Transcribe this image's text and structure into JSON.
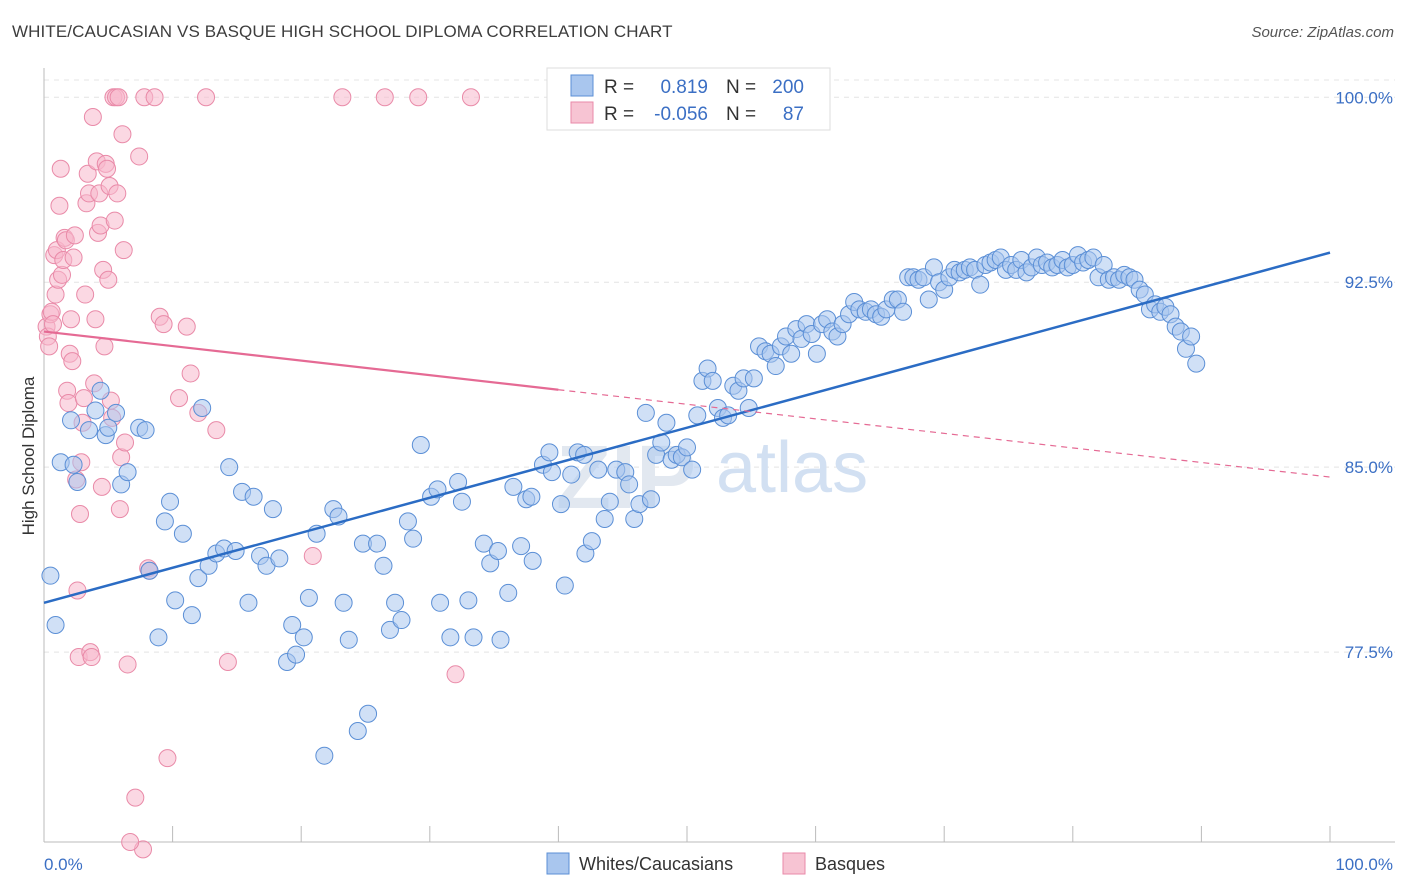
{
  "header": {
    "title": "WHITE/CAUCASIAN VS BASQUE HIGH SCHOOL DIPLOMA CORRELATION CHART",
    "source": "Source: ZipAtlas.com"
  },
  "watermark": {
    "part1": "ZIP",
    "part2": "atlas"
  },
  "colors": {
    "white_fill": "#a9c6ee",
    "white_stroke": "#5b8fd6",
    "white_line": "#2b6cc4",
    "basque_fill": "#f7b8cc",
    "basque_stroke": "#e98aa8",
    "basque_line": "#e56a94",
    "tick_text": "#3b6fc4",
    "grid": "#e4e4e4"
  },
  "legend": {
    "rows": [
      {
        "r_label": "R =",
        "r_value": "0.819",
        "n_label": "N =",
        "n_value": "200"
      },
      {
        "r_label": "R =",
        "r_value": "-0.056",
        "n_label": "N =",
        "n_value": "87"
      }
    ]
  },
  "bottom_legend": {
    "white": "Whites/Caucasians",
    "basque": "Basques"
  },
  "chart_data": {
    "type": "scatter",
    "title": "WHITE/CAUCASIAN VS BASQUE HIGH SCHOOL DIPLOMA CORRELATION CHART",
    "xlabel": "",
    "ylabel": "High School Diploma",
    "xlim": [
      0,
      100
    ],
    "ylim": [
      69.8,
      100.7
    ],
    "x_tick_labels": [
      "0.0%",
      "100.0%"
    ],
    "y_ticks": [
      {
        "value": 77.5,
        "label": "77.5%"
      },
      {
        "value": 85.0,
        "label": "85.0%"
      },
      {
        "value": 92.5,
        "label": "92.5%"
      },
      {
        "value": 100.0,
        "label": "100.0%"
      }
    ],
    "series": [
      {
        "name": "Whites/Caucasians",
        "R": 0.819,
        "N": 200,
        "trend": {
          "x": [
            0,
            100
          ],
          "y": [
            79.5,
            93.7
          ],
          "dashed_from": null
        },
        "points": [
          [
            0.5,
            80.6
          ],
          [
            0.9,
            78.6
          ],
          [
            1.3,
            85.2
          ],
          [
            2.1,
            86.9
          ],
          [
            2.3,
            85.1
          ],
          [
            2.6,
            84.4
          ],
          [
            3.5,
            86.5
          ],
          [
            4.0,
            87.3
          ],
          [
            4.4,
            88.1
          ],
          [
            4.8,
            86.3
          ],
          [
            5.0,
            86.6
          ],
          [
            5.6,
            87.2
          ],
          [
            6.0,
            84.3
          ],
          [
            6.5,
            84.8
          ],
          [
            7.4,
            86.6
          ],
          [
            7.9,
            86.5
          ],
          [
            8.2,
            80.8
          ],
          [
            8.9,
            78.1
          ],
          [
            9.4,
            82.8
          ],
          [
            9.8,
            83.6
          ],
          [
            10.2,
            79.6
          ],
          [
            10.8,
            82.3
          ],
          [
            11.5,
            79.0
          ],
          [
            12.0,
            80.5
          ],
          [
            12.3,
            87.4
          ],
          [
            12.8,
            81.0
          ],
          [
            13.4,
            81.5
          ],
          [
            14.0,
            81.7
          ],
          [
            14.4,
            85.0
          ],
          [
            14.9,
            81.6
          ],
          [
            15.4,
            84.0
          ],
          [
            15.9,
            79.5
          ],
          [
            16.3,
            83.8
          ],
          [
            16.8,
            81.4
          ],
          [
            17.3,
            81.0
          ],
          [
            17.8,
            83.3
          ],
          [
            18.3,
            81.3
          ],
          [
            18.9,
            77.1
          ],
          [
            19.3,
            78.6
          ],
          [
            19.6,
            77.4
          ],
          [
            20.2,
            78.1
          ],
          [
            20.6,
            79.7
          ],
          [
            21.2,
            82.3
          ],
          [
            21.8,
            73.3
          ],
          [
            22.5,
            83.3
          ],
          [
            22.9,
            83.0
          ],
          [
            23.3,
            79.5
          ],
          [
            23.7,
            78.0
          ],
          [
            24.4,
            74.3
          ],
          [
            24.8,
            81.9
          ],
          [
            25.2,
            75.0
          ],
          [
            25.9,
            81.9
          ],
          [
            26.4,
            81.0
          ],
          [
            26.9,
            78.4
          ],
          [
            27.3,
            79.5
          ],
          [
            27.8,
            78.8
          ],
          [
            28.3,
            82.8
          ],
          [
            28.7,
            82.1
          ],
          [
            29.3,
            85.9
          ],
          [
            30.1,
            83.8
          ],
          [
            30.6,
            84.1
          ],
          [
            30.8,
            79.5
          ],
          [
            31.6,
            78.1
          ],
          [
            32.2,
            84.4
          ],
          [
            32.5,
            83.6
          ],
          [
            33.0,
            79.6
          ],
          [
            33.4,
            78.1
          ],
          [
            34.2,
            81.9
          ],
          [
            34.7,
            81.1
          ],
          [
            35.3,
            81.6
          ],
          [
            35.5,
            78.0
          ],
          [
            36.1,
            79.9
          ],
          [
            36.5,
            84.2
          ],
          [
            37.1,
            81.8
          ],
          [
            37.5,
            83.7
          ],
          [
            37.9,
            83.8
          ],
          [
            38.0,
            81.2
          ],
          [
            38.8,
            85.1
          ],
          [
            39.3,
            85.6
          ],
          [
            39.5,
            84.8
          ],
          [
            40.2,
            83.5
          ],
          [
            40.5,
            80.2
          ],
          [
            41.0,
            84.7
          ],
          [
            41.5,
            85.6
          ],
          [
            42.0,
            85.5
          ],
          [
            42.1,
            81.5
          ],
          [
            42.6,
            82.0
          ],
          [
            43.1,
            84.9
          ],
          [
            43.6,
            82.9
          ],
          [
            44.0,
            83.6
          ],
          [
            44.5,
            84.9
          ],
          [
            45.2,
            84.8
          ],
          [
            45.5,
            84.3
          ],
          [
            45.9,
            82.9
          ],
          [
            46.3,
            83.5
          ],
          [
            46.8,
            87.2
          ],
          [
            47.2,
            83.7
          ],
          [
            47.6,
            85.5
          ],
          [
            48.0,
            86.0
          ],
          [
            48.4,
            86.8
          ],
          [
            48.8,
            85.3
          ],
          [
            49.2,
            85.5
          ],
          [
            49.6,
            85.4
          ],
          [
            50.0,
            85.8
          ],
          [
            50.4,
            84.9
          ],
          [
            50.8,
            87.1
          ],
          [
            51.2,
            88.5
          ],
          [
            51.6,
            89.0
          ],
          [
            52.0,
            88.5
          ],
          [
            52.4,
            87.4
          ],
          [
            52.8,
            87.0
          ],
          [
            53.2,
            87.1
          ],
          [
            53.6,
            88.3
          ],
          [
            54.0,
            88.1
          ],
          [
            54.4,
            88.6
          ],
          [
            54.8,
            87.4
          ],
          [
            55.2,
            88.6
          ],
          [
            55.6,
            89.9
          ],
          [
            56.1,
            89.7
          ],
          [
            56.5,
            89.6
          ],
          [
            56.9,
            89.1
          ],
          [
            57.3,
            89.9
          ],
          [
            57.7,
            90.3
          ],
          [
            58.1,
            89.6
          ],
          [
            58.5,
            90.6
          ],
          [
            58.9,
            90.2
          ],
          [
            59.3,
            90.8
          ],
          [
            59.7,
            90.4
          ],
          [
            60.1,
            89.6
          ],
          [
            60.5,
            90.8
          ],
          [
            60.9,
            91.0
          ],
          [
            61.3,
            90.5
          ],
          [
            61.7,
            90.3
          ],
          [
            62.1,
            90.8
          ],
          [
            62.6,
            91.2
          ],
          [
            63.0,
            91.7
          ],
          [
            63.4,
            91.4
          ],
          [
            63.9,
            91.3
          ],
          [
            64.3,
            91.4
          ],
          [
            64.7,
            91.2
          ],
          [
            65.1,
            91.1
          ],
          [
            65.5,
            91.4
          ],
          [
            66.0,
            91.8
          ],
          [
            66.4,
            91.8
          ],
          [
            66.8,
            91.3
          ],
          [
            67.2,
            92.7
          ],
          [
            67.6,
            92.7
          ],
          [
            68.0,
            92.6
          ],
          [
            68.4,
            92.7
          ],
          [
            68.8,
            91.8
          ],
          [
            69.2,
            93.1
          ],
          [
            69.6,
            92.5
          ],
          [
            70.0,
            92.2
          ],
          [
            70.4,
            92.7
          ],
          [
            70.8,
            93.0
          ],
          [
            71.2,
            92.9
          ],
          [
            71.6,
            93.0
          ],
          [
            72.0,
            93.1
          ],
          [
            72.4,
            93.0
          ],
          [
            72.8,
            92.4
          ],
          [
            73.2,
            93.2
          ],
          [
            73.6,
            93.3
          ],
          [
            74.0,
            93.4
          ],
          [
            74.4,
            93.5
          ],
          [
            74.8,
            93.0
          ],
          [
            75.2,
            93.2
          ],
          [
            75.6,
            93.0
          ],
          [
            76.0,
            93.4
          ],
          [
            76.4,
            92.9
          ],
          [
            76.8,
            93.1
          ],
          [
            77.2,
            93.5
          ],
          [
            77.6,
            93.2
          ],
          [
            78.0,
            93.3
          ],
          [
            78.4,
            93.1
          ],
          [
            78.8,
            93.2
          ],
          [
            79.2,
            93.4
          ],
          [
            79.6,
            93.1
          ],
          [
            80.0,
            93.2
          ],
          [
            80.4,
            93.6
          ],
          [
            80.8,
            93.3
          ],
          [
            81.2,
            93.4
          ],
          [
            81.6,
            93.5
          ],
          [
            82.0,
            92.7
          ],
          [
            82.4,
            93.2
          ],
          [
            82.8,
            92.6
          ],
          [
            83.2,
            92.7
          ],
          [
            83.6,
            92.6
          ],
          [
            84.0,
            92.8
          ],
          [
            84.4,
            92.7
          ],
          [
            84.8,
            92.6
          ],
          [
            85.2,
            92.2
          ],
          [
            85.6,
            92.0
          ],
          [
            86.0,
            91.4
          ],
          [
            86.4,
            91.6
          ],
          [
            86.8,
            91.3
          ],
          [
            87.2,
            91.5
          ],
          [
            87.6,
            91.2
          ],
          [
            88.0,
            90.7
          ],
          [
            88.4,
            90.5
          ],
          [
            88.8,
            89.8
          ],
          [
            89.2,
            90.3
          ],
          [
            89.6,
            89.2
          ]
        ]
      },
      {
        "name": "Basques",
        "R": -0.056,
        "N": 87,
        "trend": {
          "x": [
            0,
            100
          ],
          "y": [
            90.5,
            84.6
          ],
          "solid_until": 40
        },
        "points": [
          [
            0.2,
            90.7
          ],
          [
            0.3,
            90.3
          ],
          [
            0.4,
            89.9
          ],
          [
            0.5,
            91.2
          ],
          [
            0.6,
            91.3
          ],
          [
            0.7,
            90.8
          ],
          [
            0.8,
            93.6
          ],
          [
            0.9,
            92.0
          ],
          [
            1.0,
            93.8
          ],
          [
            1.1,
            92.6
          ],
          [
            1.2,
            95.6
          ],
          [
            1.3,
            97.1
          ],
          [
            1.4,
            92.8
          ],
          [
            1.5,
            93.4
          ],
          [
            1.6,
            94.3
          ],
          [
            1.7,
            94.2
          ],
          [
            1.8,
            88.1
          ],
          [
            1.9,
            87.6
          ],
          [
            2.0,
            89.6
          ],
          [
            2.1,
            91.0
          ],
          [
            2.2,
            89.3
          ],
          [
            2.3,
            93.5
          ],
          [
            2.4,
            94.4
          ],
          [
            2.5,
            84.5
          ],
          [
            2.6,
            80.0
          ],
          [
            2.7,
            77.3
          ],
          [
            2.8,
            83.1
          ],
          [
            2.9,
            85.2
          ],
          [
            3.0,
            86.8
          ],
          [
            3.1,
            87.8
          ],
          [
            3.2,
            92.0
          ],
          [
            3.3,
            95.7
          ],
          [
            3.4,
            96.9
          ],
          [
            3.5,
            96.1
          ],
          [
            3.6,
            77.5
          ],
          [
            3.7,
            77.3
          ],
          [
            3.8,
            99.2
          ],
          [
            3.9,
            88.4
          ],
          [
            4.0,
            91.0
          ],
          [
            4.1,
            97.4
          ],
          [
            4.2,
            94.5
          ],
          [
            4.3,
            96.1
          ],
          [
            4.4,
            94.8
          ],
          [
            4.5,
            84.2
          ],
          [
            4.6,
            93.0
          ],
          [
            4.7,
            89.9
          ],
          [
            4.8,
            97.3
          ],
          [
            4.9,
            97.1
          ],
          [
            5.0,
            92.6
          ],
          [
            5.1,
            96.4
          ],
          [
            5.2,
            87.7
          ],
          [
            5.3,
            87.0
          ],
          [
            5.4,
            100.0
          ],
          [
            5.5,
            95.0
          ],
          [
            5.6,
            100.0
          ],
          [
            5.7,
            96.1
          ],
          [
            5.8,
            100.0
          ],
          [
            5.9,
            83.3
          ],
          [
            6.0,
            85.4
          ],
          [
            6.1,
            98.5
          ],
          [
            6.2,
            93.8
          ],
          [
            6.3,
            86.0
          ],
          [
            6.5,
            77.0
          ],
          [
            7.1,
            71.6
          ],
          [
            7.4,
            97.6
          ],
          [
            7.8,
            100.0
          ],
          [
            8.1,
            80.9
          ],
          [
            8.2,
            80.8
          ],
          [
            8.6,
            100.0
          ],
          [
            9.0,
            91.1
          ],
          [
            9.3,
            90.8
          ],
          [
            9.6,
            73.2
          ],
          [
            10.5,
            87.8
          ],
          [
            11.1,
            90.7
          ],
          [
            11.4,
            88.8
          ],
          [
            12.0,
            87.2
          ],
          [
            12.6,
            100.0
          ],
          [
            13.4,
            86.5
          ],
          [
            14.3,
            77.1
          ],
          [
            20.9,
            81.4
          ],
          [
            23.2,
            100.0
          ],
          [
            26.5,
            100.0
          ],
          [
            29.1,
            100.0
          ],
          [
            32.0,
            76.6
          ],
          [
            33.2,
            100.0
          ],
          [
            7.7,
            69.5
          ],
          [
            6.7,
            69.8
          ]
        ]
      }
    ],
    "legend": [
      "Whites/Caucasians",
      "Basques"
    ]
  }
}
